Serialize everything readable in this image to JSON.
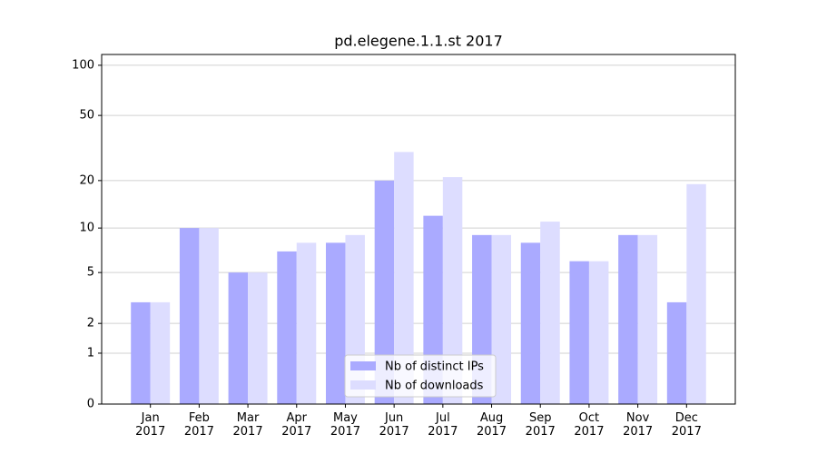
{
  "chart_data": {
    "type": "bar",
    "title": "pd.elegene.1.1.st 2017",
    "categories": [
      "Jan 2017",
      "Feb 2017",
      "Mar 2017",
      "Apr 2017",
      "May 2017",
      "Jun 2017",
      "Jul 2017",
      "Aug 2017",
      "Sep 2017",
      "Oct 2017",
      "Nov 2017",
      "Dec 2017"
    ],
    "series": [
      {
        "name": "Nb of distinct IPs",
        "color": "#aaaaff",
        "values": [
          3,
          10,
          5,
          7,
          8,
          20,
          12,
          9,
          8,
          6,
          9,
          3
        ]
      },
      {
        "name": "Nb of downloads",
        "color": "#ddddff",
        "values": [
          3,
          10,
          5,
          8,
          9,
          30,
          21,
          9,
          11,
          6,
          9,
          19
        ]
      }
    ],
    "yscale": "log1p",
    "ylim": [
      0,
      116
    ],
    "yticks": [
      0,
      1,
      2,
      5,
      10,
      20,
      50,
      100
    ],
    "grid": true,
    "legend": "lower center"
  }
}
